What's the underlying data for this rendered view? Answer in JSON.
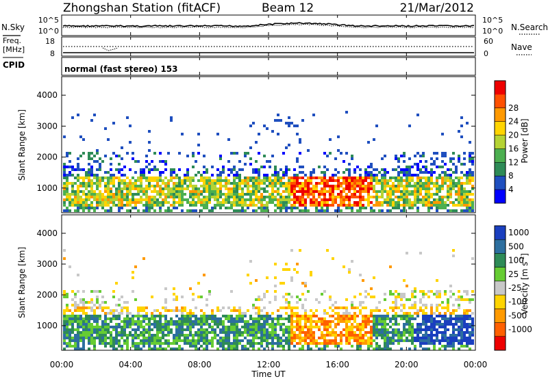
{
  "header": {
    "station": "Zhongshan Station (fitACF)",
    "beam": "Beam 12",
    "date": "21/Mar/2012"
  },
  "noise_panel": {
    "left_label": "N.Sky",
    "right_label": "N.Search",
    "left_ticks": [
      "10^5",
      "10^0"
    ],
    "right_ticks": [
      "10^5",
      "10^0"
    ]
  },
  "freq_panel": {
    "label_top": "Freq.",
    "label_unit": "[MHz]",
    "left_ticks": [
      "18",
      "8"
    ],
    "right_ticks": [
      "60",
      "0"
    ],
    "right_label": "Nave"
  },
  "cpid_panel": {
    "label": "CPID",
    "mode_text": "normal (fast stereo) 153"
  },
  "chart_data": [
    {
      "type": "heatmap",
      "name": "power",
      "ylabel": "Slant Range [km]",
      "y_ticks": [
        "1000",
        "2000",
        "3000",
        "4000"
      ],
      "ylim": [
        200,
        4600
      ],
      "colorbar": {
        "label": "Power [dB]",
        "ticks": [
          "4",
          "8",
          "12",
          "16",
          "20",
          "24",
          "28"
        ],
        "colors": [
          "#0000ff",
          "#1f4fbf",
          "#2e8b57",
          "#4caf50",
          "#b5d334",
          "#ffd400",
          "#ff9900",
          "#ff5000",
          "#ee0000"
        ]
      }
    },
    {
      "type": "heatmap",
      "name": "velocity",
      "ylabel": "Slant Range [km]",
      "y_ticks": [
        "1000",
        "2000",
        "3000",
        "4000"
      ],
      "ylim": [
        200,
        4600
      ],
      "colorbar": {
        "label": "Velocity [m s",
        "label_sup": "-1",
        "label_end": "]",
        "ticks": [
          "1000",
          "500",
          "100",
          "25",
          "-25",
          "-100",
          "-500",
          "-1000"
        ],
        "colors": [
          "#1a3fbf",
          "#2d6f9f",
          "#2e8b57",
          "#66cc33",
          "#c8c8c8",
          "#ffd400",
          "#ff9a00",
          "#ff6000",
          "#ee0000"
        ]
      }
    }
  ],
  "x_axis": {
    "ticks": [
      "00:00",
      "04:00",
      "08:00",
      "12:00",
      "16:00",
      "20:00",
      "00:00"
    ],
    "label": "Time UT"
  }
}
